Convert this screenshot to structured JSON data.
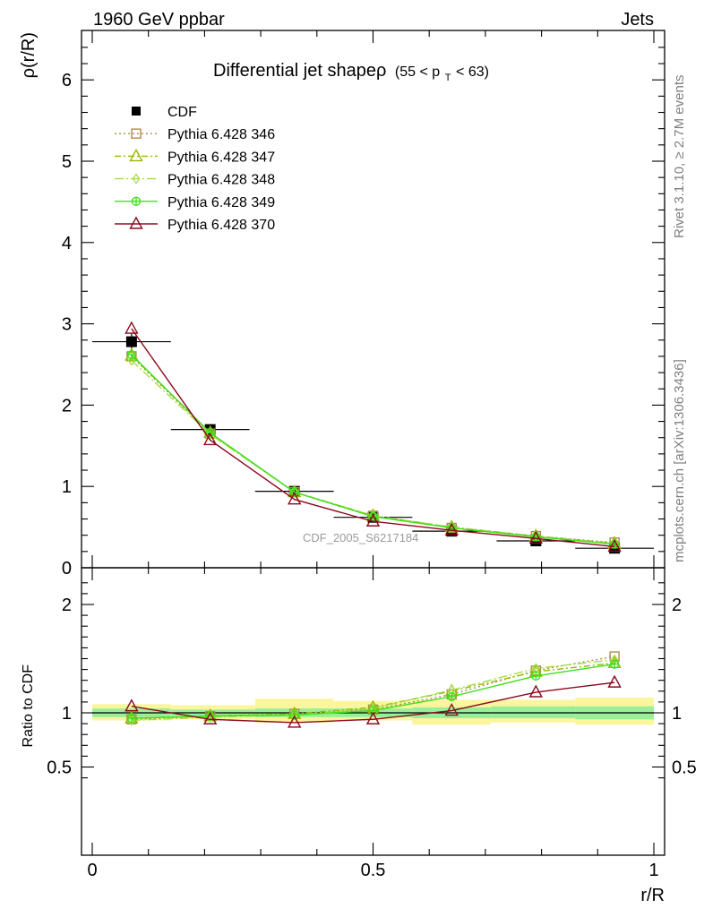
{
  "header": {
    "left": "1960 GeV ppbar",
    "right": "Jets"
  },
  "title": {
    "main": "Differential jet shapeρ",
    "range_pre": "(55 < p",
    "range_sub": "T",
    "range_post": " < 63)"
  },
  "side_labels": {
    "rivet": "Rivet 3.1.10, ≥ 2.7M events",
    "mcplots": "mcplots.cern.ch [arXiv:1306.3436]"
  },
  "watermark": "CDF_2005_S6217184",
  "chart_data": [
    {
      "type": "line",
      "panel": "main",
      "ylabel": "ρ(r/R)",
      "xlim": [
        0,
        1
      ],
      "ylim": [
        0,
        6.6
      ],
      "yticks": [
        0,
        1,
        2,
        3,
        4,
        5,
        6
      ],
      "ytick_labels": [
        "0",
        "1",
        "2",
        "3",
        "4",
        "5",
        "6"
      ],
      "legend_position": "top-left",
      "x": [
        0.07,
        0.21,
        0.36,
        0.5,
        0.64,
        0.79,
        0.93
      ],
      "series": [
        {
          "name": "CDF",
          "style": "data",
          "color": "#000000",
          "marker": "filled-square",
          "values": [
            2.78,
            1.7,
            0.94,
            0.62,
            0.45,
            0.33,
            0.24
          ],
          "xerr": 0.07,
          "yerr": [
            0.11,
            0.06,
            0.04,
            0.02,
            0.02,
            0.015,
            0.012
          ]
        },
        {
          "name": "Pythia 6.428 346",
          "style": "dotted",
          "color": "#b08a4a",
          "marker": "open-square",
          "values": [
            2.6,
            1.65,
            0.93,
            0.64,
            0.49,
            0.39,
            0.31
          ]
        },
        {
          "name": "Pythia 6.428 347",
          "style": "dashdot",
          "color": "#9ab800",
          "marker": "open-triangle",
          "values": [
            2.61,
            1.66,
            0.93,
            0.64,
            0.5,
            0.39,
            0.3
          ]
        },
        {
          "name": "Pythia 6.428 348",
          "style": "dashdot2",
          "color": "#a6de4a",
          "marker": "open-diamond",
          "values": [
            2.55,
            1.64,
            0.93,
            0.64,
            0.5,
            0.39,
            0.3
          ]
        },
        {
          "name": "Pythia 6.428 349",
          "style": "solid",
          "color": "#3ee01a",
          "marker": "crossed-circle",
          "values": [
            2.62,
            1.66,
            0.93,
            0.63,
            0.49,
            0.38,
            0.29
          ]
        },
        {
          "name": "Pythia 6.428 370",
          "style": "solid",
          "color": "#8b0a1e",
          "marker": "open-triangle",
          "values": [
            2.94,
            1.57,
            0.84,
            0.57,
            0.46,
            0.36,
            0.26
          ]
        }
      ]
    },
    {
      "type": "line",
      "panel": "ratio",
      "ylabel": "Ratio to CDF",
      "xlabel": "r/R",
      "xlim": [
        0,
        1
      ],
      "ylim": [
        0.35,
        2.3
      ],
      "yticks": [
        0.5,
        1,
        2
      ],
      "ytick_labels": [
        "0.5",
        "1",
        "2"
      ],
      "xticks": [
        0,
        0.5,
        1
      ],
      "xtick_labels": [
        "0",
        "0.5",
        "1"
      ],
      "reference": 1,
      "bands": [
        {
          "x0": 0.0,
          "x1": 0.14,
          "inner": [
            0.96,
            1.04
          ],
          "outer": [
            0.93,
            1.08
          ]
        },
        {
          "x0": 0.14,
          "x1": 0.29,
          "inner": [
            0.97,
            1.03
          ],
          "outer": [
            0.94,
            1.07
          ]
        },
        {
          "x0": 0.29,
          "x1": 0.43,
          "inner": [
            0.96,
            1.04
          ],
          "outer": [
            0.91,
            1.13
          ]
        },
        {
          "x0": 0.43,
          "x1": 0.57,
          "inner": [
            0.96,
            1.04
          ],
          "outer": [
            0.93,
            1.11
          ]
        },
        {
          "x0": 0.57,
          "x1": 0.71,
          "inner": [
            0.95,
            1.05
          ],
          "outer": [
            0.89,
            1.12
          ]
        },
        {
          "x0": 0.71,
          "x1": 0.86,
          "inner": [
            0.95,
            1.06
          ],
          "outer": [
            0.91,
            1.12
          ]
        },
        {
          "x0": 0.86,
          "x1": 1.0,
          "inner": [
            0.94,
            1.06
          ],
          "outer": [
            0.89,
            1.14
          ]
        }
      ],
      "band_colors": {
        "inner": "#99ee99",
        "outer": "#fbf59e"
      },
      "x": [
        0.07,
        0.21,
        0.36,
        0.5,
        0.64,
        0.79,
        0.93
      ],
      "series": [
        {
          "name": "Pythia 6.428 346",
          "style": "dotted",
          "color": "#b08a4a",
          "marker": "open-square",
          "values": [
            0.94,
            0.97,
            0.99,
            1.03,
            1.17,
            1.39,
            1.52
          ]
        },
        {
          "name": "Pythia 6.428 347",
          "style": "dashdot",
          "color": "#9ab800",
          "marker": "open-triangle",
          "values": [
            0.95,
            0.97,
            0.99,
            1.05,
            1.2,
            1.38,
            1.46
          ]
        },
        {
          "name": "Pythia 6.428 348",
          "style": "dashdot2",
          "color": "#a6de4a",
          "marker": "open-diamond",
          "values": [
            0.93,
            0.96,
            0.98,
            1.04,
            1.21,
            1.41,
            1.49
          ]
        },
        {
          "name": "Pythia 6.428 349",
          "style": "solid",
          "color": "#3ee01a",
          "marker": "crossed-circle",
          "values": [
            0.95,
            0.97,
            0.98,
            1.02,
            1.15,
            1.34,
            1.45
          ]
        },
        {
          "name": "Pythia 6.428 370",
          "style": "solid",
          "color": "#8b0a1e",
          "marker": "open-triangle",
          "values": [
            1.06,
            0.94,
            0.91,
            0.94,
            1.02,
            1.19,
            1.28
          ]
        }
      ]
    }
  ]
}
